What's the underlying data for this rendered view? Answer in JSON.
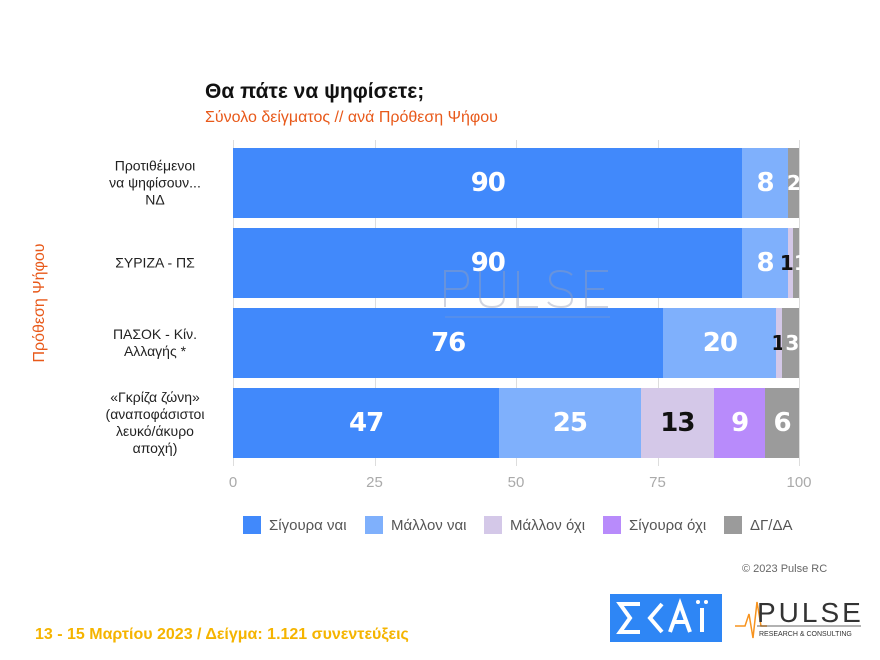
{
  "chart_data": {
    "type": "bar",
    "orientation": "horizontal",
    "stacked": true,
    "title": "Θα πάτε να ψηφίσετε;",
    "subtitle": "Σύνολο δείγματος // ανά Πρόθεση Ψήφου",
    "ylabel": "Πρόθεση Ψήφου",
    "xlim": [
      0,
      100
    ],
    "xticks": [
      0,
      25,
      50,
      75,
      100
    ],
    "categories": [
      [
        "Προτιθέμενοι",
        "να ψηφίσουν...",
        "ΝΔ"
      ],
      [
        "ΣΥΡΙΖΑ - ΠΣ"
      ],
      [
        "ΠΑΣΟΚ - Κίν.",
        "Αλλαγής *"
      ],
      [
        "«Γκρίζα ζώνη»",
        "(αναποφάσιστοι",
        "λευκό/άκυρο",
        "αποχή)"
      ]
    ],
    "series": [
      {
        "name": "Σίγουρα ναι",
        "color": "#4189fb",
        "label_color": "#ffffff",
        "values": [
          90,
          90,
          76,
          47
        ]
      },
      {
        "name": "Μάλλον ναι",
        "color": "#7fb0fc",
        "label_color": "#ffffff",
        "values": [
          8,
          8,
          20,
          25
        ]
      },
      {
        "name": "Μάλλον όχι",
        "color": "#d4c8e8",
        "label_color": "#111111",
        "values": [
          0,
          1,
          1,
          13
        ]
      },
      {
        "name": "Σίγουρα όχι",
        "color": "#b88bfb",
        "label_color": "#ffffff",
        "values": [
          0,
          0,
          0,
          9
        ]
      },
      {
        "name": "ΔΓ/ΔΑ",
        "color": "#9b9b9b",
        "label_color": "#ffffff",
        "values": [
          2,
          1,
          3,
          6
        ]
      }
    ],
    "legend": "bottom"
  },
  "watermark": "PULSE",
  "copyright": "© 2023 Pulse RC",
  "footer": "13 - 15  Μαρτίου  2023  /  Δείγμα:  1.121 συνεντεύξεις",
  "logos": {
    "skai": "ΣΚΑΪ",
    "pulse": "PULSE",
    "pulse_sub": "RESEARCH & CONSULTING"
  }
}
